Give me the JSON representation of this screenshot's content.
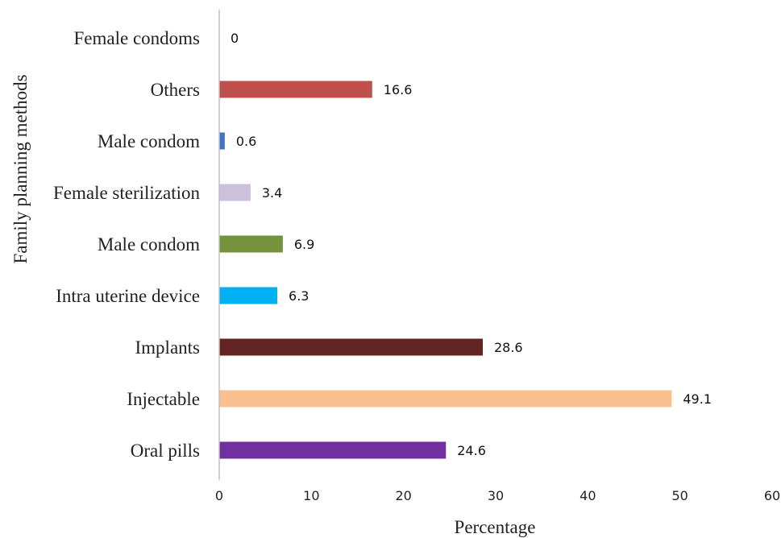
{
  "chart_data": {
    "type": "bar",
    "orientation": "horizontal",
    "title": "",
    "xlabel": "Percentage",
    "ylabel": "Family planning methods",
    "xlim": [
      0,
      60
    ],
    "x_ticks": [
      0,
      10,
      20,
      30,
      40,
      50,
      60
    ],
    "grid": false,
    "legend": "none",
    "categories": [
      "Female condoms",
      "Others",
      "Male condom",
      "Female sterilization",
      "Male condom",
      "Intra uterine device",
      "Implants",
      "Injectable",
      "Oral pills"
    ],
    "values": [
      0,
      16.6,
      0.6,
      3.4,
      6.9,
      6.3,
      28.6,
      49.1,
      24.6
    ],
    "value_labels": [
      "0",
      "16.6",
      "0.6",
      "3.4",
      "6.9",
      "6.3",
      "28.6",
      "49.1",
      "24.6"
    ],
    "colors": [
      "#7F7F7F",
      "#C0504D",
      "#4472C4",
      "#CCC0DA",
      "#76923C",
      "#00B0F0",
      "#632523",
      "#FAC090",
      "#7030A0"
    ]
  }
}
